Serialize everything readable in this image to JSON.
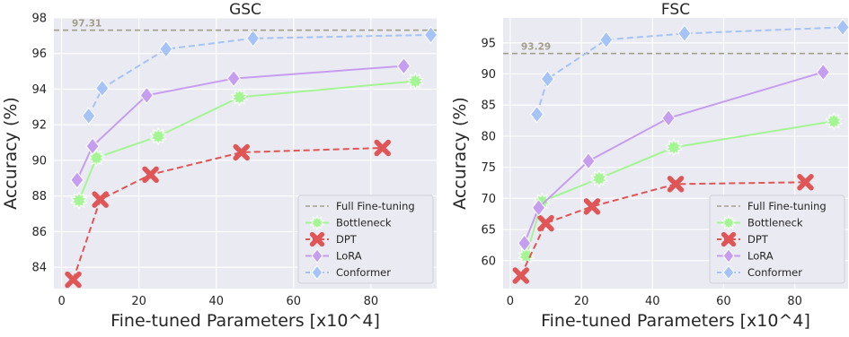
{
  "chart_data": [
    {
      "type": "line",
      "title": "GSC",
      "xlabel": "Fine-tuned Parameters [x10^4]",
      "ylabel": "Accuracy (%)",
      "xlim": [
        -2,
        97
      ],
      "ylim": [
        82.8,
        98.0
      ],
      "xticks": [
        0,
        20,
        40,
        60,
        80
      ],
      "yticks": [
        84,
        86,
        88,
        90,
        92,
        94,
        96,
        98
      ],
      "grid": true,
      "legend_position": "lower-right",
      "reference": {
        "name": "Full Fine-tuning",
        "value": 97.31,
        "label": "97.31"
      },
      "series": [
        {
          "name": "Bottleneck",
          "style": "solid",
          "marker": "star",
          "color": "#a4f593",
          "x": [
            4.5,
            9,
            25,
            46,
            91.5
          ],
          "y": [
            87.75,
            90.15,
            91.35,
            93.55,
            94.45
          ]
        },
        {
          "name": "DPT",
          "style": "dashed",
          "marker": "x",
          "color": "#e05555",
          "x": [
            3,
            10,
            23,
            46.5,
            83
          ],
          "y": [
            83.3,
            87.8,
            89.2,
            90.45,
            90.7
          ]
        },
        {
          "name": "LoRA",
          "style": "solid",
          "marker": "diamond",
          "color": "#c69ef0",
          "x": [
            4,
            8,
            22,
            44.5,
            88.5
          ],
          "y": [
            88.9,
            90.8,
            93.65,
            94.6,
            95.3
          ]
        },
        {
          "name": "Conformer",
          "style": "dashed",
          "marker": "diamond",
          "color": "#a6c3f7",
          "x": [
            7,
            10.5,
            27,
            49.5,
            95.5
          ],
          "y": [
            92.5,
            94.05,
            96.25,
            96.85,
            97.05
          ]
        }
      ]
    },
    {
      "type": "line",
      "title": "FSC",
      "xlabel": "Fine-tuned Parameters [x10^4]",
      "ylabel": "Accuracy (%)",
      "xlim": [
        -2,
        95
      ],
      "ylim": [
        55.5,
        99.0
      ],
      "xticks": [
        0,
        20,
        40,
        60,
        80
      ],
      "yticks": [
        60,
        65,
        70,
        75,
        80,
        85,
        90,
        95
      ],
      "grid": true,
      "legend_position": "lower-right",
      "reference": {
        "name": "Full Fine-tuning",
        "value": 93.29,
        "label": "93.29"
      },
      "series": [
        {
          "name": "Bottleneck",
          "style": "solid",
          "marker": "star",
          "color": "#a4f593",
          "x": [
            4.5,
            9,
            25,
            46,
            91
          ],
          "y": [
            60.8,
            69.5,
            73.2,
            78.2,
            82.4
          ]
        },
        {
          "name": "DPT",
          "style": "dashed",
          "marker": "x",
          "color": "#e05555",
          "x": [
            3,
            10,
            23,
            46.5,
            83
          ],
          "y": [
            57.6,
            66.0,
            68.7,
            72.3,
            72.6
          ]
        },
        {
          "name": "LoRA",
          "style": "solid",
          "marker": "diamond",
          "color": "#c69ef0",
          "x": [
            4,
            8,
            22,
            44.5,
            88
          ],
          "y": [
            62.8,
            68.5,
            76.0,
            82.9,
            90.3
          ]
        },
        {
          "name": "Conformer",
          "style": "dashed",
          "marker": "diamond",
          "color": "#a6c3f7",
          "x": [
            7.5,
            10.5,
            27,
            49,
            93.5
          ],
          "y": [
            83.5,
            89.2,
            95.5,
            96.5,
            97.5
          ]
        }
      ]
    }
  ]
}
